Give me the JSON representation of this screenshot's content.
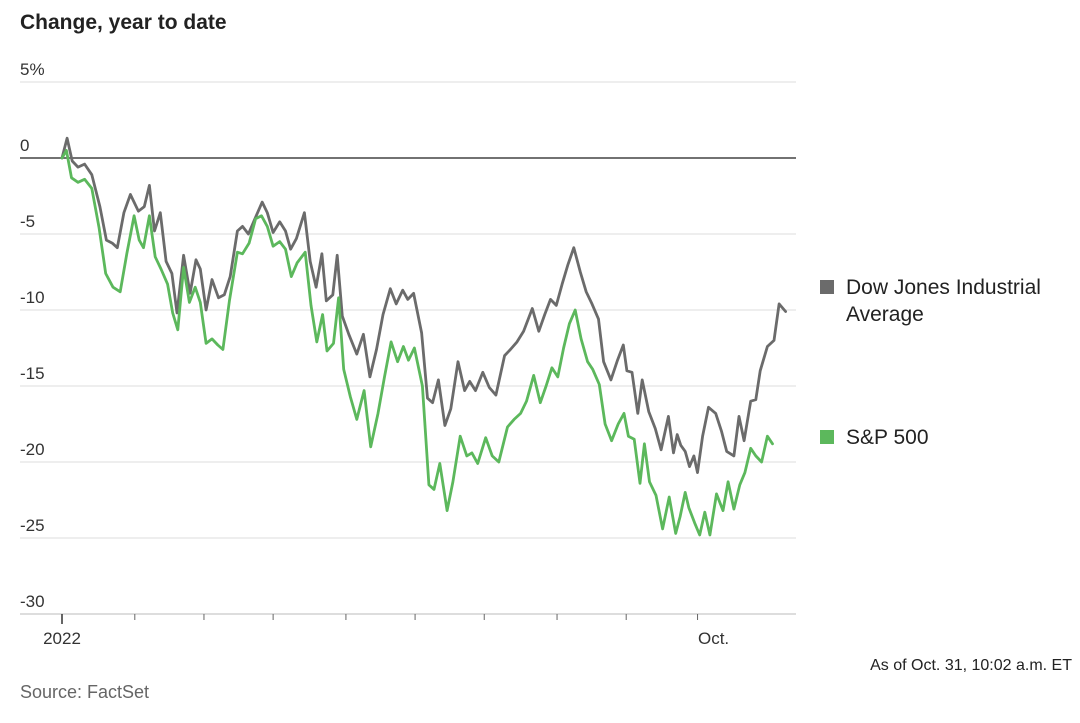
{
  "chart_data": {
    "type": "line",
    "title": "Change, year to date",
    "y_ticks": [
      {
        "value": 5,
        "label": "5%"
      },
      {
        "value": 0,
        "label": "0"
      },
      {
        "value": -5,
        "label": "-5"
      },
      {
        "value": -10,
        "label": "-10"
      },
      {
        "value": -15,
        "label": "-15"
      },
      {
        "value": -20,
        "label": "-20"
      },
      {
        "value": -25,
        "label": "-25"
      },
      {
        "value": -30,
        "label": "-30"
      }
    ],
    "ylim": [
      -30,
      5
    ],
    "x_domain": [
      0,
      100
    ],
    "x_month_ticks": [
      10,
      19.5,
      29,
      39,
      48.5,
      58,
      68,
      77.5,
      87.3
    ],
    "x_labels": [
      {
        "x": 0,
        "text": "2022"
      },
      {
        "x": 89.5,
        "text": "Oct."
      }
    ],
    "series": [
      {
        "name": "Dow Jones Industrial Average",
        "legend_lines": [
          "Dow Jones Industrial",
          "Average"
        ],
        "color": "#6b6b6b",
        "points": [
          [
            0,
            0
          ],
          [
            0.7,
            1.3
          ],
          [
            1.4,
            -0.2
          ],
          [
            2.2,
            -0.6
          ],
          [
            3.1,
            -0.4
          ],
          [
            4.1,
            -1.1
          ],
          [
            5.2,
            -3.2
          ],
          [
            6.1,
            -5.4
          ],
          [
            6.9,
            -5.6
          ],
          [
            7.6,
            -5.9
          ],
          [
            8.5,
            -3.6
          ],
          [
            9.4,
            -2.4
          ],
          [
            10.5,
            -3.5
          ],
          [
            11.3,
            -3.2
          ],
          [
            12.0,
            -1.8
          ],
          [
            12.7,
            -4.8
          ],
          [
            13.5,
            -3.6
          ],
          [
            14.3,
            -6.8
          ],
          [
            15.1,
            -7.6
          ],
          [
            15.8,
            -10.2
          ],
          [
            16.7,
            -6.4
          ],
          [
            17.6,
            -8.9
          ],
          [
            18.4,
            -6.7
          ],
          [
            19.0,
            -7.3
          ],
          [
            19.8,
            -10.0
          ],
          [
            20.6,
            -8.0
          ],
          [
            21.5,
            -9.2
          ],
          [
            22.3,
            -9.0
          ],
          [
            23.1,
            -7.8
          ],
          [
            24.1,
            -4.8
          ],
          [
            24.8,
            -4.5
          ],
          [
            25.6,
            -5.0
          ],
          [
            26.5,
            -4.0
          ],
          [
            27.5,
            -2.9
          ],
          [
            28.2,
            -3.6
          ],
          [
            29.0,
            -4.9
          ],
          [
            29.9,
            -4.2
          ],
          [
            30.7,
            -4.8
          ],
          [
            31.4,
            -6.0
          ],
          [
            32.2,
            -5.3
          ],
          [
            33.3,
            -3.6
          ],
          [
            34.1,
            -6.8
          ],
          [
            34.9,
            -8.5
          ],
          [
            35.7,
            -6.3
          ],
          [
            36.3,
            -9.4
          ],
          [
            37.2,
            -9.0
          ],
          [
            37.8,
            -6.4
          ],
          [
            38.5,
            -10.4
          ],
          [
            39.4,
            -11.6
          ],
          [
            40.5,
            -12.9
          ],
          [
            41.4,
            -11.6
          ],
          [
            42.3,
            -14.4
          ],
          [
            43.2,
            -12.6
          ],
          [
            44.1,
            -10.3
          ],
          [
            45.1,
            -8.6
          ],
          [
            45.9,
            -9.6
          ],
          [
            46.8,
            -8.7
          ],
          [
            47.5,
            -9.3
          ],
          [
            48.3,
            -8.9
          ],
          [
            49.4,
            -11.5
          ],
          [
            50.2,
            -15.8
          ],
          [
            50.9,
            -16.1
          ],
          [
            51.7,
            -14.6
          ],
          [
            52.6,
            -17.6
          ],
          [
            53.4,
            -16.5
          ],
          [
            54.4,
            -13.4
          ],
          [
            55.3,
            -15.3
          ],
          [
            56.0,
            -14.7
          ],
          [
            56.8,
            -15.3
          ],
          [
            57.8,
            -14.1
          ],
          [
            58.7,
            -15.1
          ],
          [
            59.6,
            -15.6
          ],
          [
            60.8,
            -13.0
          ],
          [
            61.6,
            -12.6
          ],
          [
            62.5,
            -12.1
          ],
          [
            63.4,
            -11.4
          ],
          [
            64.6,
            -9.9
          ],
          [
            65.5,
            -11.4
          ],
          [
            66.3,
            -10.3
          ],
          [
            67.1,
            -9.3
          ],
          [
            67.9,
            -9.7
          ],
          [
            68.7,
            -8.3
          ],
          [
            69.5,
            -7.0
          ],
          [
            70.3,
            -5.9
          ],
          [
            71.2,
            -7.5
          ],
          [
            72.0,
            -8.8
          ],
          [
            72.8,
            -9.6
          ],
          [
            73.7,
            -10.6
          ],
          [
            74.4,
            -13.4
          ],
          [
            75.4,
            -14.6
          ],
          [
            76.3,
            -13.3
          ],
          [
            77.1,
            -12.3
          ],
          [
            77.6,
            -14.0
          ],
          [
            78.3,
            -14.1
          ],
          [
            79.1,
            -16.8
          ],
          [
            79.7,
            -14.6
          ],
          [
            80.6,
            -16.7
          ],
          [
            81.5,
            -17.8
          ],
          [
            82.3,
            -19.2
          ],
          [
            83.3,
            -17.0
          ],
          [
            84.0,
            -19.4
          ],
          [
            84.5,
            -18.2
          ],
          [
            85.0,
            -18.9
          ],
          [
            85.6,
            -19.3
          ],
          [
            86.2,
            -20.3
          ],
          [
            86.8,
            -19.6
          ],
          [
            87.3,
            -20.7
          ],
          [
            88.0,
            -18.3
          ],
          [
            88.8,
            -16.4
          ],
          [
            89.8,
            -16.8
          ],
          [
            90.6,
            -18.0
          ],
          [
            91.3,
            -19.3
          ],
          [
            92.3,
            -19.6
          ],
          [
            93.0,
            -17.0
          ],
          [
            93.7,
            -18.6
          ],
          [
            94.6,
            -16.0
          ],
          [
            95.3,
            -15.9
          ],
          [
            95.9,
            -14.0
          ],
          [
            96.9,
            -12.4
          ],
          [
            97.8,
            -12.0
          ],
          [
            98.5,
            -9.6
          ],
          [
            99.4,
            -10.1
          ]
        ]
      },
      {
        "name": "S&P 500",
        "legend_lines": [
          "S&P 500"
        ],
        "color": "#5cb85c",
        "points": [
          [
            0,
            0
          ],
          [
            0.6,
            0.5
          ],
          [
            1.3,
            -1.3
          ],
          [
            2.2,
            -1.6
          ],
          [
            3.1,
            -1.4
          ],
          [
            4.1,
            -2.0
          ],
          [
            5.1,
            -4.6
          ],
          [
            6.0,
            -7.6
          ],
          [
            7.0,
            -8.5
          ],
          [
            8.0,
            -8.8
          ],
          [
            8.9,
            -6.3
          ],
          [
            9.9,
            -3.8
          ],
          [
            10.6,
            -5.4
          ],
          [
            11.2,
            -5.9
          ],
          [
            12.0,
            -3.8
          ],
          [
            12.8,
            -6.5
          ],
          [
            13.6,
            -7.3
          ],
          [
            14.5,
            -8.3
          ],
          [
            15.2,
            -10.2
          ],
          [
            15.9,
            -11.3
          ],
          [
            16.7,
            -7.2
          ],
          [
            17.5,
            -9.5
          ],
          [
            18.3,
            -8.5
          ],
          [
            19.0,
            -9.5
          ],
          [
            19.8,
            -12.2
          ],
          [
            20.6,
            -11.9
          ],
          [
            21.4,
            -12.3
          ],
          [
            22.1,
            -12.6
          ],
          [
            23.0,
            -9.4
          ],
          [
            24.1,
            -6.2
          ],
          [
            24.8,
            -6.3
          ],
          [
            25.7,
            -5.6
          ],
          [
            26.6,
            -4.0
          ],
          [
            27.4,
            -3.8
          ],
          [
            28.2,
            -4.5
          ],
          [
            29.0,
            -5.8
          ],
          [
            29.9,
            -5.5
          ],
          [
            30.7,
            -6.0
          ],
          [
            31.5,
            -7.8
          ],
          [
            32.3,
            -6.9
          ],
          [
            33.4,
            -6.2
          ],
          [
            34.2,
            -9.7
          ],
          [
            35.0,
            -12.1
          ],
          [
            35.8,
            -10.3
          ],
          [
            36.4,
            -12.7
          ],
          [
            37.3,
            -12.2
          ],
          [
            38.0,
            -9.2
          ],
          [
            38.7,
            -13.9
          ],
          [
            39.6,
            -15.7
          ],
          [
            40.5,
            -17.2
          ],
          [
            41.5,
            -15.3
          ],
          [
            42.4,
            -19.0
          ],
          [
            43.4,
            -16.8
          ],
          [
            44.3,
            -14.4
          ],
          [
            45.2,
            -12.1
          ],
          [
            46.1,
            -13.4
          ],
          [
            46.9,
            -12.4
          ],
          [
            47.6,
            -13.3
          ],
          [
            48.4,
            -12.5
          ],
          [
            49.5,
            -15.0
          ],
          [
            50.4,
            -21.5
          ],
          [
            51.1,
            -21.8
          ],
          [
            51.9,
            -20.1
          ],
          [
            52.9,
            -23.2
          ],
          [
            53.7,
            -21.3
          ],
          [
            54.7,
            -18.3
          ],
          [
            55.6,
            -19.6
          ],
          [
            56.3,
            -19.4
          ],
          [
            57.1,
            -20.1
          ],
          [
            58.2,
            -18.4
          ],
          [
            59.1,
            -19.6
          ],
          [
            60.0,
            -20.0
          ],
          [
            61.2,
            -17.7
          ],
          [
            62.1,
            -17.2
          ],
          [
            63.0,
            -16.8
          ],
          [
            63.8,
            -16.0
          ],
          [
            64.8,
            -14.3
          ],
          [
            65.7,
            -16.1
          ],
          [
            66.5,
            -15.0
          ],
          [
            67.3,
            -13.8
          ],
          [
            68.1,
            -14.4
          ],
          [
            68.9,
            -12.5
          ],
          [
            69.7,
            -10.9
          ],
          [
            70.5,
            -10.0
          ],
          [
            71.3,
            -11.9
          ],
          [
            72.2,
            -13.4
          ],
          [
            72.9,
            -13.9
          ],
          [
            73.8,
            -14.9
          ],
          [
            74.6,
            -17.5
          ],
          [
            75.5,
            -18.6
          ],
          [
            76.4,
            -17.5
          ],
          [
            77.2,
            -16.8
          ],
          [
            77.8,
            -18.3
          ],
          [
            78.6,
            -18.5
          ],
          [
            79.4,
            -21.4
          ],
          [
            80.0,
            -18.8
          ],
          [
            80.7,
            -21.3
          ],
          [
            81.6,
            -22.2
          ],
          [
            82.5,
            -24.4
          ],
          [
            83.4,
            -22.3
          ],
          [
            84.3,
            -24.7
          ],
          [
            84.9,
            -23.6
          ],
          [
            85.6,
            -22.0
          ],
          [
            86.1,
            -23.0
          ],
          [
            86.9,
            -24.0
          ],
          [
            87.6,
            -24.8
          ],
          [
            88.3,
            -23.3
          ],
          [
            89.0,
            -24.8
          ],
          [
            89.9,
            -22.1
          ],
          [
            90.8,
            -23.2
          ],
          [
            91.5,
            -21.3
          ],
          [
            92.3,
            -23.1
          ],
          [
            93.1,
            -21.5
          ],
          [
            93.8,
            -20.7
          ],
          [
            94.6,
            -19.1
          ],
          [
            95.3,
            -19.6
          ],
          [
            96.1,
            -20.0
          ],
          [
            96.9,
            -18.3
          ],
          [
            97.6,
            -18.8
          ]
        ]
      }
    ],
    "note": "As of Oct. 31, 10:02 a.m. ET",
    "source": "Source: FactSet"
  }
}
